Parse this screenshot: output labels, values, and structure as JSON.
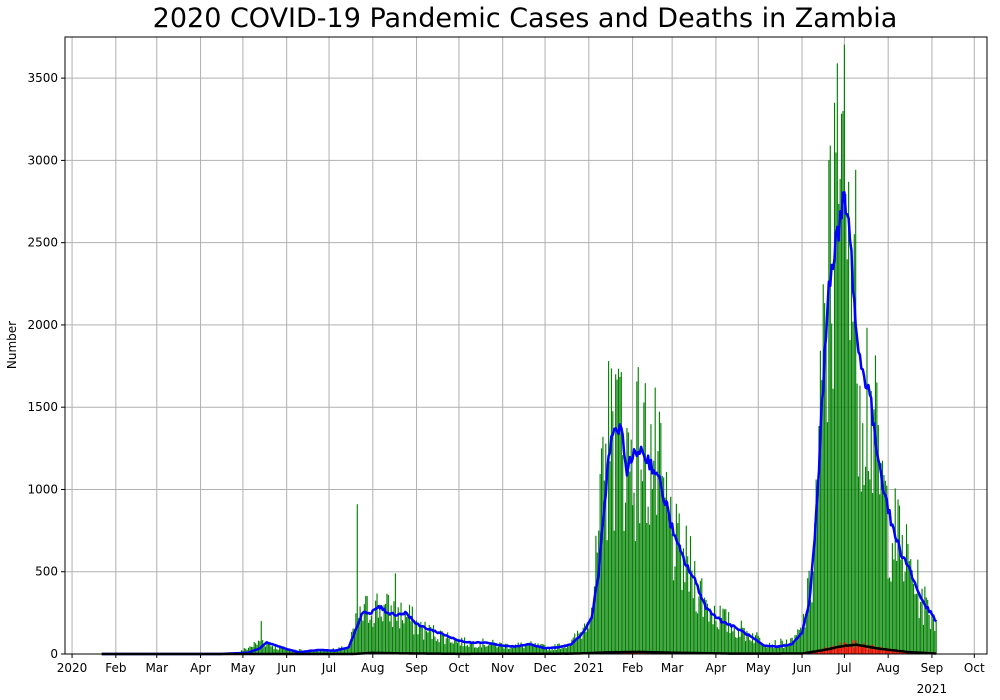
{
  "chart_data": {
    "type": "bar",
    "title": "2020 COVID-19 Pandemic Cases and Deaths in Zambia",
    "xlabel": "",
    "ylabel": "Number",
    "ylim": [
      0,
      3750
    ],
    "xlim": [
      "2019-12-27",
      "2021-10-10"
    ],
    "grid": true,
    "y_ticks": [
      0,
      500,
      1000,
      1500,
      2000,
      2500,
      3000,
      3500
    ],
    "x_ticks": [
      {
        "date": "2020-01-01",
        "label": "2020",
        "sublabel": ""
      },
      {
        "date": "2020-02-01",
        "label": "Feb",
        "sublabel": ""
      },
      {
        "date": "2020-03-01",
        "label": "Mar",
        "sublabel": ""
      },
      {
        "date": "2020-04-01",
        "label": "Apr",
        "sublabel": ""
      },
      {
        "date": "2020-05-01",
        "label": "May",
        "sublabel": ""
      },
      {
        "date": "2020-06-01",
        "label": "Jun",
        "sublabel": ""
      },
      {
        "date": "2020-07-01",
        "label": "Jul",
        "sublabel": ""
      },
      {
        "date": "2020-08-01",
        "label": "Aug",
        "sublabel": ""
      },
      {
        "date": "2020-09-01",
        "label": "Sep",
        "sublabel": ""
      },
      {
        "date": "2020-10-01",
        "label": "Oct",
        "sublabel": ""
      },
      {
        "date": "2020-11-01",
        "label": "Nov",
        "sublabel": ""
      },
      {
        "date": "2020-12-01",
        "label": "Dec",
        "sublabel": ""
      },
      {
        "date": "2021-01-01",
        "label": "2021",
        "sublabel": ""
      },
      {
        "date": "2021-02-01",
        "label": "Feb",
        "sublabel": ""
      },
      {
        "date": "2021-03-01",
        "label": "Mar",
        "sublabel": ""
      },
      {
        "date": "2021-04-01",
        "label": "Apr",
        "sublabel": ""
      },
      {
        "date": "2021-05-01",
        "label": "May",
        "sublabel": ""
      },
      {
        "date": "2021-06-01",
        "label": "Jun",
        "sublabel": ""
      },
      {
        "date": "2021-07-01",
        "label": "Jul",
        "sublabel": ""
      },
      {
        "date": "2021-08-01",
        "label": "Aug",
        "sublabel": ""
      },
      {
        "date": "2021-09-01",
        "label": "Sep",
        "sublabel": "2021"
      },
      {
        "date": "2021-10-01",
        "label": "Oct",
        "sublabel": ""
      }
    ],
    "date_range": [
      "2020-01-22",
      "2021-09-04"
    ],
    "series": [
      {
        "kind": "bar",
        "color": "#008000",
        "anchors": [
          [
            "2020-01-22",
            0
          ],
          [
            "2020-03-18",
            0
          ],
          [
            "2020-04-10",
            3
          ],
          [
            "2020-04-28",
            10
          ],
          [
            "2020-05-10",
            60
          ],
          [
            "2020-05-15",
            80
          ],
          [
            "2020-05-25",
            40
          ],
          [
            "2020-06-05",
            25
          ],
          [
            "2020-06-20",
            20
          ],
          [
            "2020-07-05",
            25
          ],
          [
            "2020-07-15",
            40
          ],
          [
            "2020-07-20",
            180
          ],
          [
            "2020-07-27",
            260
          ],
          [
            "2020-08-05",
            290
          ],
          [
            "2020-08-15",
            250
          ],
          [
            "2020-08-25",
            230
          ],
          [
            "2020-09-05",
            150
          ],
          [
            "2020-09-20",
            110
          ],
          [
            "2020-10-05",
            70
          ],
          [
            "2020-10-20",
            65
          ],
          [
            "2020-11-05",
            50
          ],
          [
            "2020-11-20",
            55
          ],
          [
            "2020-12-05",
            35
          ],
          [
            "2020-12-20",
            70
          ],
          [
            "2020-12-28",
            150
          ],
          [
            "2021-01-05",
            400
          ],
          [
            "2021-01-10",
            900
          ],
          [
            "2021-01-18",
            1300
          ],
          [
            "2021-01-23",
            1400
          ],
          [
            "2021-01-29",
            1150
          ],
          [
            "2021-02-05",
            1250
          ],
          [
            "2021-02-15",
            1200
          ],
          [
            "2021-02-25",
            850
          ],
          [
            "2021-03-05",
            600
          ],
          [
            "2021-03-15",
            500
          ],
          [
            "2021-03-25",
            300
          ],
          [
            "2021-04-10",
            180
          ],
          [
            "2021-04-25",
            120
          ],
          [
            "2021-05-10",
            60
          ],
          [
            "2021-05-25",
            70
          ],
          [
            "2021-06-01",
            150
          ],
          [
            "2021-06-08",
            450
          ],
          [
            "2021-06-13",
            1200
          ],
          [
            "2021-06-18",
            2000
          ],
          [
            "2021-06-22",
            2400
          ],
          [
            "2021-06-28",
            2550
          ],
          [
            "2021-07-01",
            2750
          ],
          [
            "2021-07-06",
            2400
          ],
          [
            "2021-07-12",
            1800
          ],
          [
            "2021-07-18",
            1600
          ],
          [
            "2021-07-24",
            1200
          ],
          [
            "2021-08-01",
            800
          ],
          [
            "2021-08-10",
            650
          ],
          [
            "2021-08-18",
            500
          ],
          [
            "2021-08-25",
            320
          ],
          [
            "2021-09-04",
            200
          ]
        ],
        "spikes": [
          [
            "2020-07-21",
            910
          ],
          [
            "2020-05-14",
            200
          ],
          [
            "2020-08-17",
            490
          ],
          [
            "2021-01-15",
            1780
          ],
          [
            "2021-01-20",
            1700
          ],
          [
            "2021-06-24",
            3350
          ],
          [
            "2021-06-26",
            3590
          ],
          [
            "2021-06-21",
            3090
          ],
          [
            "2021-07-04",
            2870
          ],
          [
            "2021-06-30",
            3300
          ]
        ]
      },
      {
        "kind": "bar",
        "color": "#ff0000",
        "anchors": [
          [
            "2020-01-22",
            0
          ],
          [
            "2020-07-15",
            0
          ],
          [
            "2020-08-01",
            8
          ],
          [
            "2020-08-20",
            4
          ],
          [
            "2020-10-01",
            1
          ],
          [
            "2020-12-20",
            2
          ],
          [
            "2021-01-15",
            10
          ],
          [
            "2021-02-05",
            14
          ],
          [
            "2021-03-01",
            8
          ],
          [
            "2021-04-15",
            2
          ],
          [
            "2021-06-01",
            3
          ],
          [
            "2021-06-15",
            25
          ],
          [
            "2021-07-01",
            55
          ],
          [
            "2021-07-10",
            60
          ],
          [
            "2021-07-25",
            35
          ],
          [
            "2021-08-15",
            12
          ],
          [
            "2021-09-04",
            3
          ]
        ]
      },
      {
        "kind": "line",
        "color": "#0000ff",
        "anchors": [
          [
            "2020-01-22",
            0
          ],
          [
            "2020-04-15",
            0
          ],
          [
            "2020-05-05",
            8
          ],
          [
            "2020-05-13",
            35
          ],
          [
            "2020-05-18",
            70
          ],
          [
            "2020-05-25",
            50
          ],
          [
            "2020-06-01",
            30
          ],
          [
            "2020-06-10",
            10
          ],
          [
            "2020-06-18",
            20
          ],
          [
            "2020-06-25",
            25
          ],
          [
            "2020-07-05",
            20
          ],
          [
            "2020-07-15",
            40
          ],
          [
            "2020-07-20",
            150
          ],
          [
            "2020-07-25",
            260
          ],
          [
            "2020-07-30",
            240
          ],
          [
            "2020-08-05",
            290
          ],
          [
            "2020-08-12",
            250
          ],
          [
            "2020-08-18",
            240
          ],
          [
            "2020-08-25",
            250
          ],
          [
            "2020-09-01",
            180
          ],
          [
            "2020-09-10",
            150
          ],
          [
            "2020-09-20",
            120
          ],
          [
            "2020-10-01",
            80
          ],
          [
            "2020-10-10",
            70
          ],
          [
            "2020-10-20",
            70
          ],
          [
            "2020-11-01",
            50
          ],
          [
            "2020-11-10",
            45
          ],
          [
            "2020-11-20",
            60
          ],
          [
            "2020-12-01",
            35
          ],
          [
            "2020-12-10",
            40
          ],
          [
            "2020-12-20",
            60
          ],
          [
            "2020-12-28",
            130
          ],
          [
            "2021-01-03",
            220
          ],
          [
            "2021-01-08",
            500
          ],
          [
            "2021-01-12",
            900
          ],
          [
            "2021-01-16",
            1250
          ],
          [
            "2021-01-20",
            1390
          ],
          [
            "2021-01-24",
            1330
          ],
          [
            "2021-01-28",
            1130
          ],
          [
            "2021-02-02",
            1200
          ],
          [
            "2021-02-06",
            1250
          ],
          [
            "2021-02-12",
            1180
          ],
          [
            "2021-02-18",
            1100
          ],
          [
            "2021-02-25",
            900
          ],
          [
            "2021-03-03",
            700
          ],
          [
            "2021-03-10",
            560
          ],
          [
            "2021-03-18",
            430
          ],
          [
            "2021-03-25",
            280
          ],
          [
            "2021-04-05",
            200
          ],
          [
            "2021-04-15",
            160
          ],
          [
            "2021-04-25",
            110
          ],
          [
            "2021-05-05",
            50
          ],
          [
            "2021-05-15",
            45
          ],
          [
            "2021-05-25",
            60
          ],
          [
            "2021-06-01",
            130
          ],
          [
            "2021-06-06",
            300
          ],
          [
            "2021-06-10",
            700
          ],
          [
            "2021-06-14",
            1300
          ],
          [
            "2021-06-18",
            2000
          ],
          [
            "2021-06-22",
            2400
          ],
          [
            "2021-06-25",
            2500
          ],
          [
            "2021-06-28",
            2600
          ],
          [
            "2021-07-01",
            2780
          ],
          [
            "2021-07-04",
            2600
          ],
          [
            "2021-07-07",
            2300
          ],
          [
            "2021-07-10",
            1900
          ],
          [
            "2021-07-14",
            1700
          ],
          [
            "2021-07-18",
            1650
          ],
          [
            "2021-07-22",
            1350
          ],
          [
            "2021-07-28",
            1050
          ],
          [
            "2021-08-03",
            800
          ],
          [
            "2021-08-10",
            620
          ],
          [
            "2021-08-16",
            520
          ],
          [
            "2021-08-22",
            380
          ],
          [
            "2021-08-27",
            300
          ],
          [
            "2021-09-04",
            200
          ]
        ]
      },
      {
        "kind": "line",
        "color": "#000000",
        "anchors": [
          [
            "2020-01-22",
            0
          ],
          [
            "2020-07-18",
            0
          ],
          [
            "2020-08-01",
            7
          ],
          [
            "2020-08-20",
            4
          ],
          [
            "2020-10-01",
            1
          ],
          [
            "2020-12-20",
            2
          ],
          [
            "2021-01-15",
            10
          ],
          [
            "2021-02-05",
            13
          ],
          [
            "2021-03-01",
            8
          ],
          [
            "2021-04-15",
            2
          ],
          [
            "2021-06-01",
            3
          ],
          [
            "2021-06-15",
            22
          ],
          [
            "2021-07-01",
            50
          ],
          [
            "2021-07-10",
            55
          ],
          [
            "2021-07-25",
            33
          ],
          [
            "2021-08-15",
            12
          ],
          [
            "2021-09-04",
            3
          ]
        ]
      }
    ]
  }
}
